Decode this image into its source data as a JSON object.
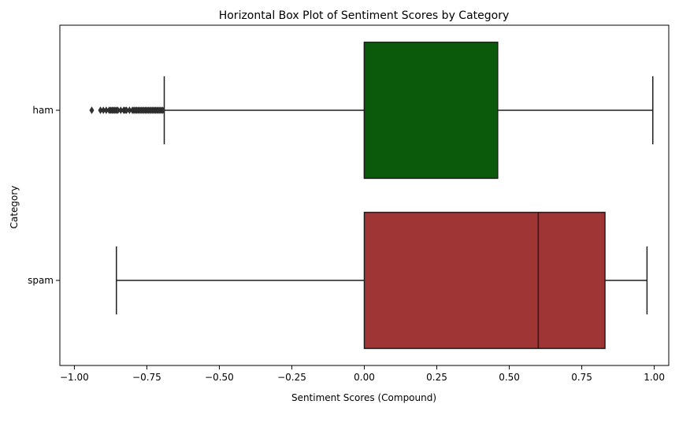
{
  "chart_data": {
    "type": "boxplot",
    "orientation": "horizontal",
    "title": "Horizontal Box Plot of Sentiment Scores by Category",
    "xlabel": "Sentiment Scores (Compound)",
    "ylabel": "Category",
    "xlim": [
      -1.05,
      1.05
    ],
    "x_ticks": [
      -1.0,
      -0.75,
      -0.5,
      -0.25,
      0.0,
      0.25,
      0.5,
      0.75,
      1.0
    ],
    "x_tick_labels": [
      "−1.00",
      "−0.75",
      "−0.50",
      "−0.25",
      "0.00",
      "0.25",
      "0.50",
      "0.75",
      "1.00"
    ],
    "grid": false,
    "legend": "none",
    "categories": [
      "ham",
      "spam"
    ],
    "series": [
      {
        "category": "ham",
        "color": "#0b5a0b",
        "whisker_low": -0.69,
        "q1": 0.0,
        "median": 0.0,
        "q3": 0.46,
        "whisker_high": 0.995,
        "outliers": [
          -0.94,
          -0.91,
          -0.9,
          -0.89,
          -0.88,
          -0.875,
          -0.87,
          -0.865,
          -0.86,
          -0.855,
          -0.85,
          -0.84,
          -0.83,
          -0.825,
          -0.82,
          -0.81,
          -0.8,
          -0.795,
          -0.79,
          -0.785,
          -0.78,
          -0.775,
          -0.77,
          -0.765,
          -0.76,
          -0.755,
          -0.75,
          -0.745,
          -0.74,
          -0.735,
          -0.73,
          -0.725,
          -0.72,
          -0.715,
          -0.71,
          -0.705,
          -0.7,
          -0.695
        ]
      },
      {
        "category": "spam",
        "color": "#a03535",
        "whisker_low": -0.855,
        "q1": 0.0,
        "median": 0.6,
        "q3": 0.83,
        "whisker_high": 0.975,
        "outliers": []
      }
    ]
  }
}
